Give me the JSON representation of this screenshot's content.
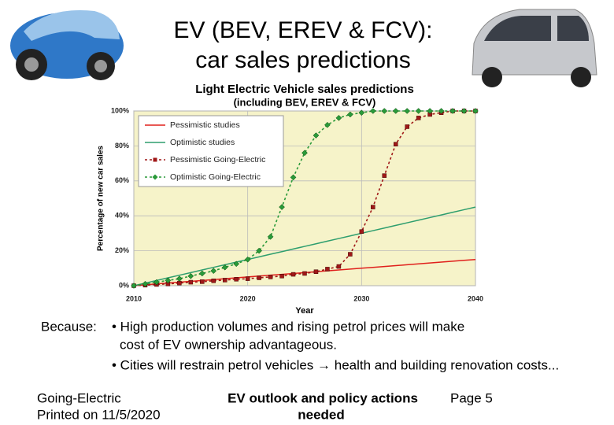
{
  "slide": {
    "title_lines": [
      "EV (BEV, EREV & FCV):",
      "car sales predictions"
    ],
    "body_label": "Because:",
    "bullets": [
      [
        "• High production volumes and rising petrol prices will make",
        "cost of EV ownership advantageous."
      ],
      [
        "• Cities will restrain petrol vehicles → health and building renovation costs..."
      ]
    ],
    "footer_left": [
      "Going-Electric",
      "Printed on 11/5/2020"
    ],
    "footer_center": [
      "EV outlook and policy actions",
      "needed"
    ],
    "footer_right": "Page 5"
  },
  "chart_data": {
    "type": "line",
    "title": "Light Electric Vehicle sales predictions",
    "subtitle": "(including BEV, EREV & FCV)",
    "x_label": "Year",
    "y_label": "Percentage of new car sales",
    "x": [
      2010,
      2011,
      2012,
      2013,
      2014,
      2015,
      2016,
      2017,
      2018,
      2019,
      2020,
      2021,
      2022,
      2023,
      2024,
      2025,
      2026,
      2027,
      2028,
      2029,
      2030,
      2031,
      2032,
      2033,
      2034,
      2035,
      2036,
      2037,
      2038,
      2039,
      2040
    ],
    "series": [
      {
        "name": "Pessimistic studies",
        "color": "#e0201c",
        "marker": "none",
        "dashed": false,
        "values": [
          0,
          0.5,
          1,
          1.5,
          2,
          2.5,
          3,
          3.5,
          4,
          4.5,
          5,
          5.5,
          6,
          6.5,
          7,
          7.5,
          8,
          8.5,
          9,
          9.5,
          10,
          10.5,
          11,
          11.5,
          12,
          12.5,
          13,
          13.5,
          14,
          14.5,
          15
        ]
      },
      {
        "name": "Optimistic studies",
        "color": "#2e9e6e",
        "marker": "none",
        "dashed": false,
        "values": [
          0,
          1.5,
          3,
          4.5,
          6,
          7.5,
          9,
          10.5,
          12,
          13.5,
          15,
          16.5,
          18,
          19.5,
          21,
          22.5,
          24,
          25.5,
          27,
          28.5,
          30,
          31.5,
          33,
          34.5,
          36,
          37.5,
          39,
          40.5,
          42,
          43.5,
          45
        ]
      },
      {
        "name": "Pessimistic Going-Electric",
        "color": "#a01818",
        "marker": "square",
        "dashed": true,
        "values": [
          0,
          0.3,
          0.7,
          1,
          1.5,
          2,
          2.3,
          2.8,
          3.2,
          3.7,
          4,
          4.5,
          5,
          5.5,
          6.5,
          7,
          8,
          9.5,
          11,
          18,
          31,
          45,
          63,
          81,
          91,
          96,
          98,
          99,
          100,
          100,
          100
        ]
      },
      {
        "name": "Optimistic Going-Electric",
        "color": "#2a9a3a",
        "marker": "diamond",
        "dashed": true,
        "values": [
          0,
          1,
          2,
          3,
          4,
          5.5,
          7,
          8.5,
          10.5,
          12.5,
          15,
          20,
          28,
          45,
          62,
          76,
          86,
          92,
          96,
          98,
          99,
          100,
          100,
          100,
          100,
          100,
          100,
          100,
          100,
          100,
          100
        ]
      }
    ],
    "xlim": [
      2010,
      2040
    ],
    "ylim": [
      0,
      100
    ],
    "xticks": [
      2010,
      2020,
      2030,
      2040
    ],
    "yticks": [
      {
        "value": 0,
        "label": "0%"
      },
      {
        "value": 20,
        "label": "20%"
      },
      {
        "value": 40,
        "label": "40%"
      },
      {
        "value": 60,
        "label": "60%"
      },
      {
        "value": 80,
        "label": "80%"
      },
      {
        "value": 100,
        "label": "100%"
      }
    ],
    "grid": true,
    "legend": "top-left",
    "background": "#f6f3c9"
  }
}
